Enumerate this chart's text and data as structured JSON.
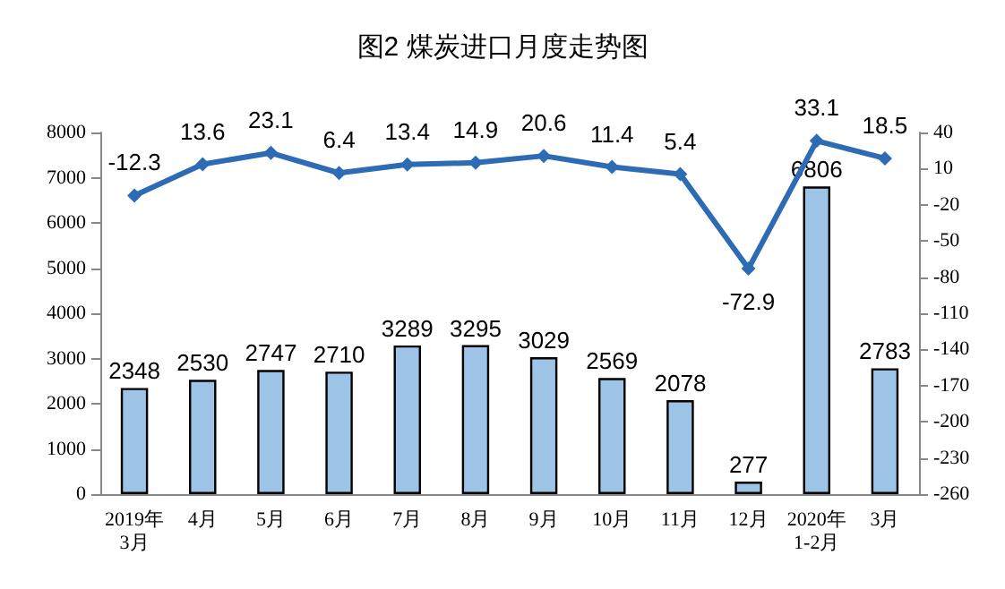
{
  "chart_data": {
    "type": "bar",
    "title": "图2 煤炭进口月度走势图",
    "categories": [
      "2019年\n3月",
      "4月",
      "5月",
      "6月",
      "7月",
      "8月",
      "9月",
      "10月",
      "11月",
      "12月",
      "2020年\n1-2月",
      "3月"
    ],
    "series": [
      {
        "color": "#9dc3e6",
        "values": [
          2348,
          2530,
          2747,
          2710,
          3289,
          3295,
          3029,
          2569,
          2078,
          277,
          6806,
          2783
        ]
      },
      {
        "type": "line",
        "axis": "y2",
        "color": "#2e6bb5",
        "marker": "diamond",
        "values": [
          -12.3,
          13.6,
          23.1,
          6.4,
          13.4,
          14.9,
          20.6,
          11.4,
          5.4,
          -72.9,
          33.1,
          18.5
        ]
      }
    ],
    "ylim": [
      0,
      8000
    ],
    "yticks": [
      0,
      1000,
      2000,
      3000,
      4000,
      5000,
      6000,
      7000,
      8000
    ],
    "y2lim": [
      -260,
      40
    ],
    "y2ticks": [
      -260,
      -230,
      -200,
      -170,
      -140,
      -110,
      -80,
      -50,
      -20,
      10,
      40
    ],
    "data_labels": true,
    "grid": false
  }
}
